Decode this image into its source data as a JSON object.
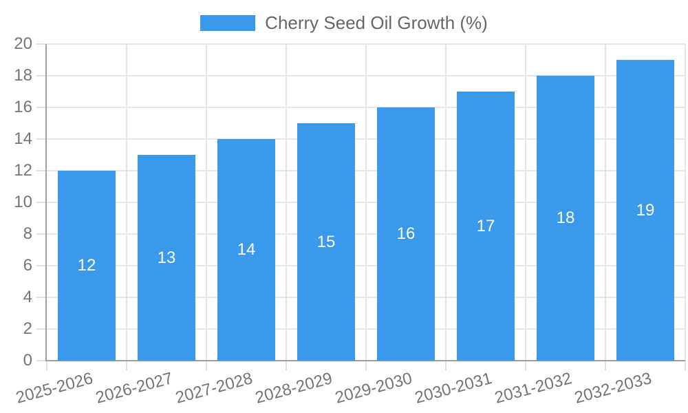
{
  "legend": {
    "items": [
      {
        "label": "Cherry Seed Oil Growth (%)",
        "color": "#3b99ec"
      }
    ]
  },
  "chart_data": {
    "type": "bar",
    "title": "Cherry Seed Oil Growth (%)",
    "categories": [
      "2025-2026",
      "2026-2027",
      "2027-2028",
      "2028-2029",
      "2029-2030",
      "2030-2031",
      "2031-2032",
      "2032-2033"
    ],
    "series": [
      {
        "name": "Cherry Seed Oil Growth (%)",
        "values": [
          12,
          13,
          14,
          15,
          16,
          17,
          18,
          19
        ]
      }
    ],
    "xlabel": "",
    "ylabel": "",
    "ylim": [
      0,
      20
    ],
    "ytick_step": 2,
    "yticks": [
      0,
      2,
      4,
      6,
      8,
      10,
      12,
      14,
      16,
      18,
      20
    ],
    "grid": true,
    "legend_position": "top",
    "value_labels": {
      "position": "inside-center",
      "color": "#ffffff"
    },
    "x_label_rotation_deg": -15
  },
  "colors": {
    "bar": "#3b99ec",
    "grid": "#e6e6e6",
    "tick": "#e0e0e0",
    "axis": "#9e9e9e",
    "tick_text": "#757575",
    "legend_text": "#666666",
    "value_text": "#ffffff",
    "background": "#ffffff"
  }
}
